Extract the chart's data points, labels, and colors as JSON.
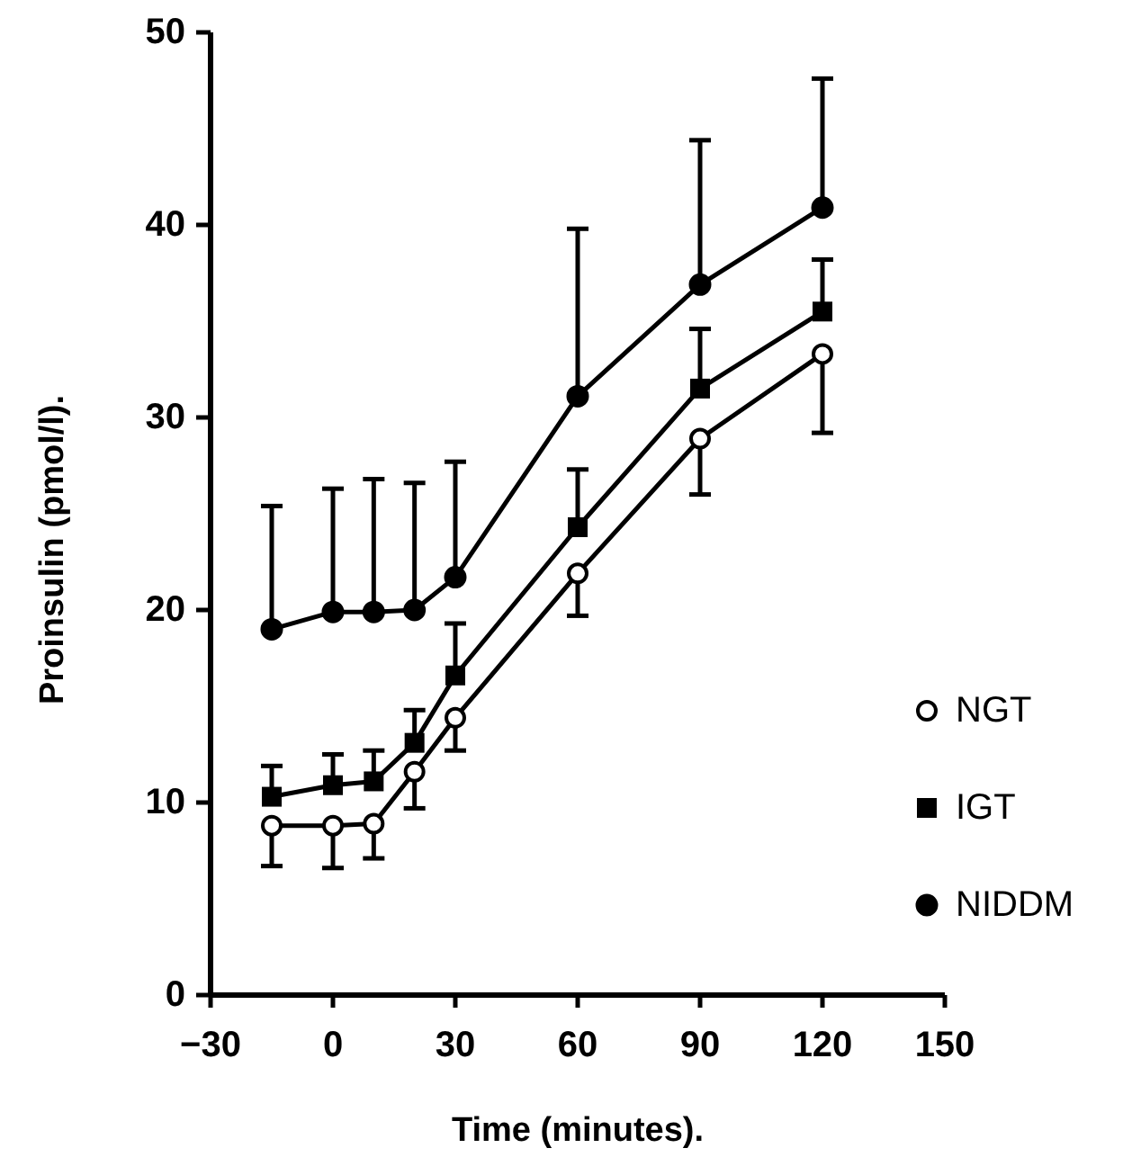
{
  "chart_data": {
    "type": "line",
    "xlabel": "Time (minutes).",
    "ylabel": "Proinsulin (pmol/l).",
    "x": [
      -15,
      0,
      10,
      20,
      30,
      60,
      90,
      120
    ],
    "xlim": [
      -30,
      150
    ],
    "xticks": [
      -30,
      0,
      30,
      60,
      90,
      120,
      150
    ],
    "ylim": [
      0,
      50
    ],
    "yticks": [
      0,
      10,
      20,
      30,
      40,
      50
    ],
    "grid": false,
    "legend": "right",
    "line_style": "solid",
    "series": [
      {
        "name": "NGT",
        "color": "#000000",
        "marker": "circle-open",
        "values": [
          8.8,
          8.8,
          8.9,
          11.6,
          14.4,
          21.9,
          28.9,
          33.3
        ],
        "errors": [
          [
            6.7,
            8.8
          ],
          [
            6.6,
            8.8
          ],
          [
            7.1,
            8.9
          ],
          [
            9.7,
            11.6
          ],
          [
            12.7,
            14.4
          ],
          [
            19.7,
            21.9
          ],
          [
            26.0,
            28.9
          ],
          [
            29.2,
            33.3
          ]
        ]
      },
      {
        "name": "IGT",
        "color": "#000000",
        "marker": "square",
        "values": [
          10.3,
          10.9,
          11.1,
          13.1,
          16.6,
          24.3,
          31.5,
          35.5
        ],
        "errors": [
          [
            10.3,
            11.9
          ],
          [
            10.9,
            12.5
          ],
          [
            11.1,
            12.7
          ],
          [
            13.1,
            14.8
          ],
          [
            16.6,
            19.3
          ],
          [
            24.3,
            27.3
          ],
          [
            31.5,
            34.6
          ],
          [
            35.5,
            38.2
          ]
        ]
      },
      {
        "name": "NIDDM",
        "color": "#000000",
        "marker": "circle",
        "values": [
          19.0,
          19.9,
          19.9,
          20.0,
          21.7,
          31.1,
          36.9,
          40.9
        ],
        "errors": [
          [
            19.0,
            25.4
          ],
          [
            19.9,
            26.3
          ],
          [
            19.9,
            26.8
          ],
          [
            20.0,
            26.6
          ],
          [
            21.7,
            27.7
          ],
          [
            31.1,
            39.8
          ],
          [
            36.9,
            44.4
          ],
          [
            40.9,
            47.6
          ]
        ]
      }
    ]
  }
}
